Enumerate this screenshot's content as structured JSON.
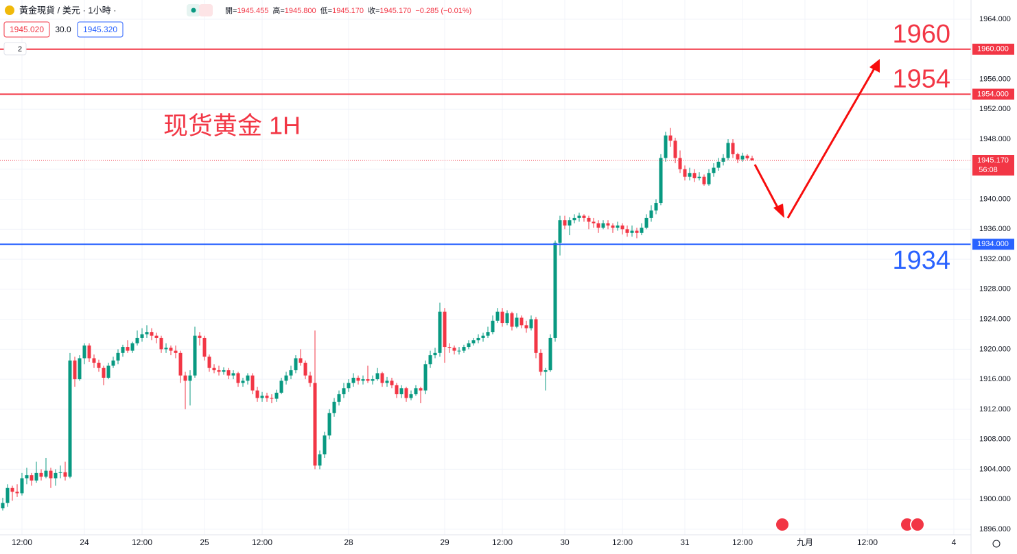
{
  "header": {
    "symbol": "黃金現貨 / 美元 · 1小時 ·",
    "ohlc": [
      {
        "label": "開=",
        "value": "1945.455"
      },
      {
        "label": "高=",
        "value": "1945.800"
      },
      {
        "label": "低=",
        "value": "1945.170"
      },
      {
        "label": "收=",
        "value": "1945.170"
      }
    ],
    "change": "−0.285 (−0.01%)",
    "bid": "1945.020",
    "spread": "30.0",
    "ask": "1945.320",
    "indicators": "2"
  },
  "chart_data": {
    "type": "candlestick",
    "title": "现货黄金 1H",
    "up_color": "#089981",
    "down_color": "#f23645",
    "grid": true,
    "xlim": [
      -0.57,
      201.57
    ],
    "ylim": [
      1895.26,
      1966.56
    ],
    "xticks": [
      {
        "value": 4,
        "label": "12:00"
      },
      {
        "value": 17,
        "label": "24"
      },
      {
        "value": 29,
        "label": "12:00"
      },
      {
        "value": 42,
        "label": "25"
      },
      {
        "value": 54,
        "label": "12:00"
      },
      {
        "value": 72,
        "label": "28"
      },
      {
        "value": 92,
        "label": "29"
      },
      {
        "value": 104,
        "label": "12:00"
      },
      {
        "value": 117,
        "label": "30"
      },
      {
        "value": 129,
        "label": "12:00"
      },
      {
        "value": 142,
        "label": "31"
      },
      {
        "value": 154,
        "label": "12:00"
      },
      {
        "value": 167,
        "label": "九月"
      },
      {
        "value": 180,
        "label": "12:00"
      },
      {
        "value": 198,
        "label": "4"
      }
    ],
    "yticks": [
      {
        "value": 1964,
        "label": "1964.000"
      },
      {
        "value": 1960,
        "label": "1960.000"
      },
      {
        "value": 1956,
        "label": "1956.000"
      },
      {
        "value": 1952,
        "label": "1952.000"
      },
      {
        "value": 1948,
        "label": "1948.000"
      },
      {
        "value": 1944,
        "label": "1944.000"
      },
      {
        "value": 1940,
        "label": "1940.000"
      },
      {
        "value": 1936,
        "label": "1936.000"
      },
      {
        "value": 1932,
        "label": "1932.000"
      },
      {
        "value": 1928,
        "label": "1928.000"
      },
      {
        "value": 1924,
        "label": "1924.000"
      },
      {
        "value": 1920,
        "label": "1920.000"
      },
      {
        "value": 1916,
        "label": "1916.000"
      },
      {
        "value": 1912,
        "label": "1912.000"
      },
      {
        "value": 1908,
        "label": "1908.000"
      },
      {
        "value": 1904,
        "label": "1904.000"
      },
      {
        "value": 1900,
        "label": "1900.000"
      },
      {
        "value": 1896,
        "label": "1896.000"
      }
    ],
    "levels": [
      {
        "value": 1960,
        "label": "1960.000",
        "text": "1960",
        "color": "#f23645"
      },
      {
        "value": 1954,
        "label": "1954.000",
        "text": "1954",
        "color": "#f23645"
      },
      {
        "value": 1934,
        "label": "1934.000",
        "text": "1934",
        "color": "#2962ff"
      }
    ],
    "price_line": {
      "value": 1945.17,
      "label": "1945.170",
      "countdown": "56:08",
      "color": "#f23645"
    },
    "candles": [
      [
        1898.8,
        1900.2,
        1898.5,
        1899.5
      ],
      [
        1899.5,
        1902.0,
        1899.0,
        1901.5
      ],
      [
        1901.5,
        1901.8,
        1899.8,
        1901.0
      ],
      [
        1901.0,
        1902.0,
        1900.3,
        1900.8
      ],
      [
        1900.8,
        1903.5,
        1900.5,
        1902.8
      ],
      [
        1902.8,
        1904.2,
        1902.0,
        1903.2
      ],
      [
        1903.2,
        1903.5,
        1901.8,
        1902.5
      ],
      [
        1902.5,
        1905.0,
        1902.2,
        1903.5
      ],
      [
        1903.5,
        1904.0,
        1902.5,
        1903.0
      ],
      [
        1903.0,
        1905.5,
        1902.8,
        1903.8
      ],
      [
        1903.8,
        1904.2,
        1901.5,
        1902.8
      ],
      [
        1902.8,
        1904.0,
        1901.8,
        1903.5
      ],
      [
        1903.5,
        1904.5,
        1902.8,
        1903.6
      ],
      [
        1903.6,
        1905.0,
        1902.5,
        1903.0
      ],
      [
        1903.0,
        1919.5,
        1902.8,
        1918.5
      ],
      [
        1918.5,
        1919.0,
        1915.0,
        1916.0
      ],
      [
        1916.0,
        1919.2,
        1915.8,
        1918.8
      ],
      [
        1918.8,
        1920.8,
        1918.0,
        1920.5
      ],
      [
        1920.5,
        1920.8,
        1918.3,
        1918.8
      ],
      [
        1918.8,
        1919.3,
        1917.5,
        1918.2
      ],
      [
        1918.2,
        1918.6,
        1917.0,
        1917.5
      ],
      [
        1917.5,
        1917.8,
        1915.2,
        1916.2
      ],
      [
        1916.2,
        1918.2,
        1916.0,
        1917.8
      ],
      [
        1917.8,
        1919.0,
        1917.5,
        1918.5
      ],
      [
        1918.5,
        1920.0,
        1918.0,
        1919.5
      ],
      [
        1919.5,
        1920.6,
        1919.0,
        1920.3
      ],
      [
        1920.3,
        1921.2,
        1919.5,
        1919.8
      ],
      [
        1919.8,
        1921.0,
        1919.5,
        1920.8
      ],
      [
        1920.8,
        1922.5,
        1920.5,
        1921.5
      ],
      [
        1921.5,
        1922.8,
        1921.0,
        1922.0
      ],
      [
        1922.0,
        1923.2,
        1921.5,
        1922.3
      ],
      [
        1922.3,
        1922.8,
        1921.2,
        1921.8
      ],
      [
        1921.8,
        1922.2,
        1920.8,
        1921.5
      ],
      [
        1921.5,
        1921.8,
        1919.5,
        1920.0
      ],
      [
        1920.0,
        1920.8,
        1919.5,
        1920.2
      ],
      [
        1920.2,
        1920.5,
        1919.2,
        1919.8
      ],
      [
        1919.8,
        1920.5,
        1918.8,
        1919.5
      ],
      [
        1919.5,
        1919.8,
        1915.5,
        1916.5
      ],
      [
        1916.5,
        1917.0,
        1912.0,
        1915.8
      ],
      [
        1915.8,
        1917.2,
        1912.5,
        1916.5
      ],
      [
        1916.5,
        1923.0,
        1916.2,
        1921.8
      ],
      [
        1921.8,
        1922.3,
        1920.5,
        1921.5
      ],
      [
        1921.5,
        1921.8,
        1918.5,
        1919.0
      ],
      [
        1919.0,
        1919.3,
        1917.0,
        1917.5
      ],
      [
        1917.5,
        1918.0,
        1916.8,
        1917.2
      ],
      [
        1917.2,
        1917.8,
        1916.5,
        1917.0
      ],
      [
        1917.0,
        1917.6,
        1916.6,
        1917.2
      ],
      [
        1917.2,
        1917.5,
        1916.0,
        1916.5
      ],
      [
        1916.5,
        1917.2,
        1916.0,
        1916.8
      ],
      [
        1916.8,
        1917.0,
        1915.0,
        1915.5
      ],
      [
        1915.5,
        1916.2,
        1915.0,
        1915.8
      ],
      [
        1915.8,
        1916.8,
        1915.3,
        1916.5
      ],
      [
        1916.5,
        1916.8,
        1914.0,
        1914.5
      ],
      [
        1914.5,
        1915.0,
        1913.0,
        1913.5
      ],
      [
        1913.5,
        1914.3,
        1913.0,
        1913.8
      ],
      [
        1913.8,
        1914.2,
        1913.0,
        1913.5
      ],
      [
        1913.5,
        1914.0,
        1912.8,
        1913.4
      ],
      [
        1913.4,
        1914.6,
        1913.0,
        1914.2
      ],
      [
        1914.2,
        1916.2,
        1914.0,
        1915.8
      ],
      [
        1915.8,
        1917.0,
        1915.3,
        1916.5
      ],
      [
        1916.5,
        1917.8,
        1916.0,
        1917.2
      ],
      [
        1917.2,
        1919.2,
        1916.8,
        1918.8
      ],
      [
        1918.8,
        1920.0,
        1917.8,
        1918.2
      ],
      [
        1918.2,
        1918.5,
        1916.0,
        1916.5
      ],
      [
        1916.5,
        1917.0,
        1915.0,
        1915.5
      ],
      [
        1915.5,
        1922.5,
        1904.0,
        1904.5
      ],
      [
        1904.5,
        1906.5,
        1904.0,
        1906.0
      ],
      [
        1906.0,
        1909.0,
        1905.5,
        1908.5
      ],
      [
        1908.5,
        1912.0,
        1908.0,
        1911.5
      ],
      [
        1911.5,
        1913.5,
        1911.0,
        1913.0
      ],
      [
        1913.0,
        1914.5,
        1912.5,
        1914.0
      ],
      [
        1914.0,
        1915.5,
        1913.5,
        1914.8
      ],
      [
        1914.8,
        1916.0,
        1914.3,
        1915.5
      ],
      [
        1915.5,
        1916.8,
        1915.0,
        1916.2
      ],
      [
        1916.2,
        1916.5,
        1915.3,
        1915.8
      ],
      [
        1915.8,
        1916.5,
        1915.3,
        1916.0
      ],
      [
        1916.0,
        1917.8,
        1915.5,
        1915.8
      ],
      [
        1915.8,
        1916.5,
        1915.3,
        1916.0
      ],
      [
        1916.0,
        1917.5,
        1915.8,
        1916.8
      ],
      [
        1916.8,
        1917.0,
        1915.0,
        1915.5
      ],
      [
        1915.5,
        1916.3,
        1915.0,
        1915.8
      ],
      [
        1915.8,
        1916.2,
        1914.8,
        1915.2
      ],
      [
        1915.2,
        1915.5,
        1913.5,
        1914.0
      ],
      [
        1914.0,
        1915.2,
        1913.5,
        1914.8
      ],
      [
        1914.8,
        1915.0,
        1913.0,
        1913.5
      ],
      [
        1913.5,
        1914.5,
        1913.2,
        1914.0
      ],
      [
        1914.0,
        1915.2,
        1913.8,
        1914.8
      ],
      [
        1914.8,
        1915.0,
        1912.8,
        1914.5
      ],
      [
        1914.5,
        1918.5,
        1914.0,
        1918.0
      ],
      [
        1918.0,
        1919.8,
        1917.5,
        1919.2
      ],
      [
        1919.2,
        1920.2,
        1918.8,
        1919.5
      ],
      [
        1919.5,
        1926.2,
        1919.0,
        1925.0
      ],
      [
        1925.0,
        1925.5,
        1918.2,
        1920.3
      ],
      [
        1920.3,
        1920.8,
        1919.5,
        1920.2
      ],
      [
        1920.2,
        1920.5,
        1919.3,
        1919.8
      ],
      [
        1919.8,
        1920.3,
        1919.3,
        1919.8
      ],
      [
        1919.8,
        1920.6,
        1919.5,
        1920.3
      ],
      [
        1920.3,
        1921.2,
        1920.0,
        1920.8
      ],
      [
        1920.8,
        1921.5,
        1920.5,
        1921.2
      ],
      [
        1921.2,
        1922.0,
        1920.8,
        1921.5
      ],
      [
        1921.5,
        1922.2,
        1921.0,
        1921.8
      ],
      [
        1921.8,
        1923.0,
        1921.5,
        1922.3
      ],
      [
        1922.3,
        1924.5,
        1922.0,
        1923.8
      ],
      [
        1923.8,
        1925.5,
        1923.5,
        1925.0
      ],
      [
        1925.0,
        1925.5,
        1923.0,
        1923.5
      ],
      [
        1923.5,
        1925.2,
        1923.2,
        1924.8
      ],
      [
        1924.8,
        1925.0,
        1922.5,
        1923.0
      ],
      [
        1923.0,
        1924.8,
        1922.8,
        1924.2
      ],
      [
        1924.2,
        1924.5,
        1922.8,
        1923.2
      ],
      [
        1923.2,
        1923.8,
        1922.2,
        1922.8
      ],
      [
        1922.8,
        1924.5,
        1922.5,
        1924.0
      ],
      [
        1924.0,
        1924.3,
        1918.8,
        1919.5
      ],
      [
        1919.5,
        1920.0,
        1916.5,
        1917.0
      ],
      [
        1917.0,
        1917.5,
        1914.5,
        1917.2
      ],
      [
        1917.2,
        1922.0,
        1917.0,
        1921.5
      ],
      [
        1921.5,
        1934.5,
        1921.0,
        1934.2
      ],
      [
        1934.2,
        1937.8,
        1932.5,
        1937.2
      ],
      [
        1937.2,
        1937.8,
        1936.0,
        1936.5
      ],
      [
        1936.5,
        1937.6,
        1935.2,
        1937.2
      ],
      [
        1937.2,
        1938.0,
        1936.8,
        1937.5
      ],
      [
        1937.5,
        1938.2,
        1937.0,
        1937.8
      ],
      [
        1937.8,
        1938.0,
        1937.0,
        1937.5
      ],
      [
        1937.5,
        1937.8,
        1936.0,
        1937.0
      ],
      [
        1937.0,
        1937.5,
        1936.2,
        1936.8
      ],
      [
        1936.8,
        1937.2,
        1935.5,
        1936.2
      ],
      [
        1936.2,
        1937.2,
        1936.0,
        1936.8
      ],
      [
        1936.8,
        1937.2,
        1936.0,
        1936.5
      ],
      [
        1936.5,
        1936.8,
        1935.5,
        1936.2
      ],
      [
        1936.2,
        1937.0,
        1935.8,
        1936.5
      ],
      [
        1936.5,
        1936.8,
        1935.3,
        1936.0
      ],
      [
        1936.0,
        1936.5,
        1935.0,
        1935.5
      ],
      [
        1935.5,
        1936.5,
        1935.0,
        1935.8
      ],
      [
        1935.8,
        1936.2,
        1934.8,
        1935.5
      ],
      [
        1935.5,
        1936.8,
        1935.2,
        1936.2
      ],
      [
        1936.2,
        1938.0,
        1936.0,
        1937.5
      ],
      [
        1937.5,
        1939.2,
        1937.0,
        1938.5
      ],
      [
        1938.5,
        1940.0,
        1938.0,
        1939.5
      ],
      [
        1939.5,
        1946.0,
        1939.2,
        1945.5
      ],
      [
        1945.5,
        1949.0,
        1945.0,
        1948.5
      ],
      [
        1948.5,
        1949.5,
        1947.0,
        1947.8
      ],
      [
        1947.8,
        1948.2,
        1944.8,
        1945.5
      ],
      [
        1945.5,
        1946.5,
        1943.5,
        1944.0
      ],
      [
        1944.0,
        1944.5,
        1942.5,
        1943.0
      ],
      [
        1943.0,
        1944.2,
        1942.5,
        1943.5
      ],
      [
        1943.5,
        1944.0,
        1942.3,
        1942.8
      ],
      [
        1942.8,
        1943.6,
        1942.5,
        1943.0
      ],
      [
        1943.0,
        1943.3,
        1941.8,
        1942.0
      ],
      [
        1942.0,
        1944.0,
        1941.8,
        1943.5
      ],
      [
        1943.5,
        1944.8,
        1943.0,
        1944.2
      ],
      [
        1944.2,
        1945.5,
        1943.8,
        1945.0
      ],
      [
        1945.0,
        1946.0,
        1944.5,
        1945.5
      ],
      [
        1945.5,
        1948.0,
        1945.2,
        1947.5
      ],
      [
        1947.5,
        1948.0,
        1945.5,
        1946.0
      ],
      [
        1946.0,
        1946.2,
        1944.8,
        1945.3
      ],
      [
        1945.3,
        1946.2,
        1945.0,
        1945.8
      ],
      [
        1945.8,
        1946.0,
        1945.2,
        1945.455
      ],
      [
        1945.455,
        1945.8,
        1945.17,
        1945.17
      ]
    ]
  }
}
